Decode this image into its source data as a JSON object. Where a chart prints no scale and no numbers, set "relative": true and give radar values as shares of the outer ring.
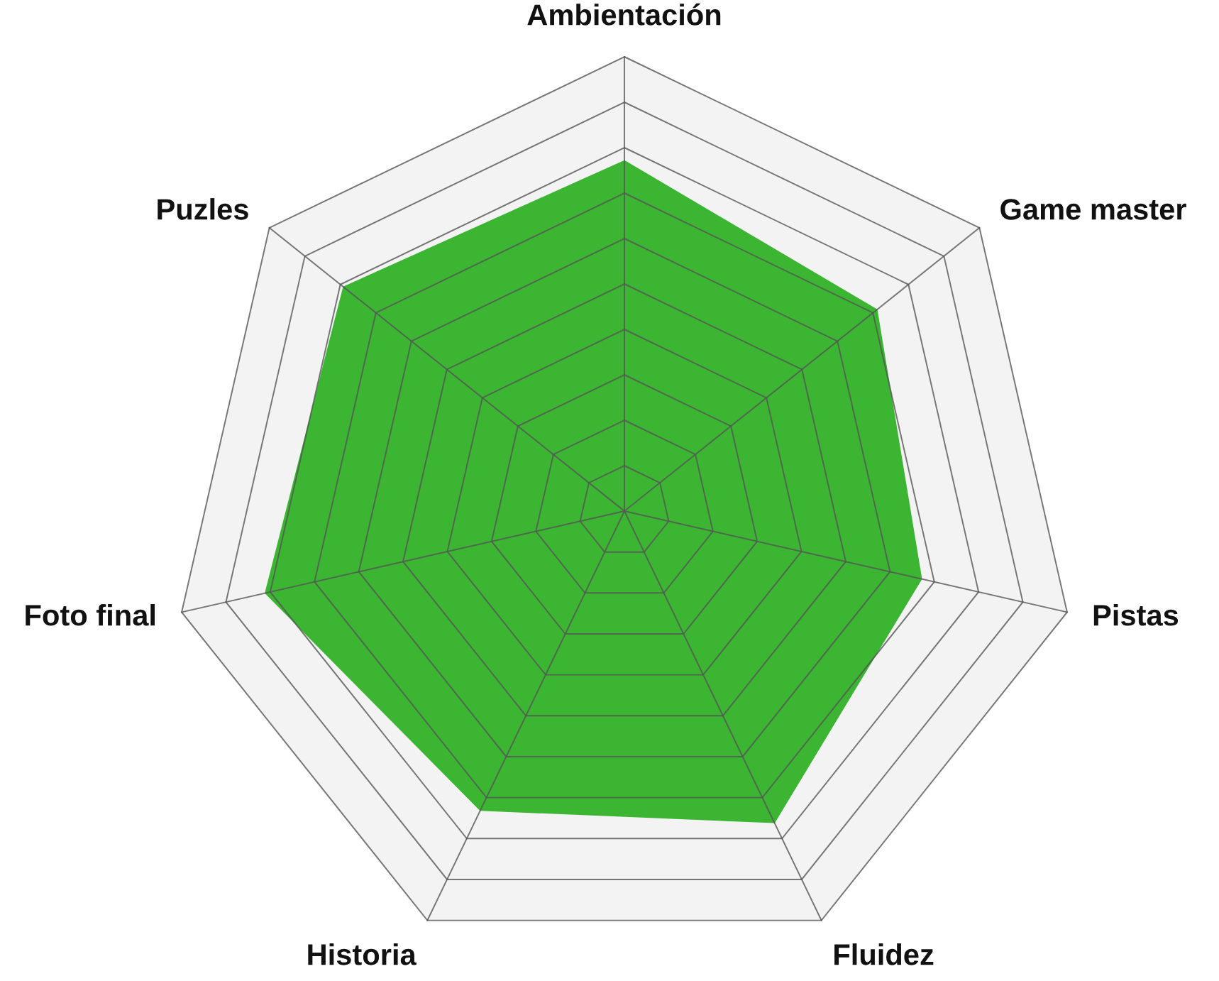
{
  "chart_data": {
    "type": "radar",
    "relative": true,
    "grid": true,
    "categories": [
      "Ambientación",
      "Game master",
      "Pistas",
      "Fluidez",
      "Historia",
      "Foto final",
      "Puzles"
    ],
    "series": [
      {
        "color": "#3bb532",
        "values": [
          0.77,
          0.71,
          0.67,
          0.76,
          0.73,
          0.81,
          0.79
        ]
      }
    ]
  }
}
